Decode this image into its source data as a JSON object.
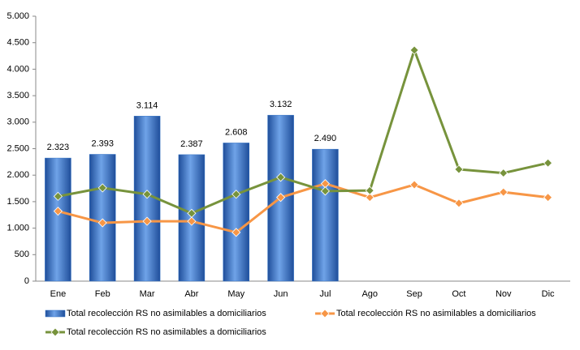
{
  "chart_data": {
    "type": "combo",
    "categories": [
      "Ene",
      "Feb",
      "Mar",
      "Abr",
      "May",
      "Jun",
      "Jul",
      "Ago",
      "Sep",
      "Oct",
      "Nov",
      "Dic"
    ],
    "ylim": [
      0,
      5000
    ],
    "yticks": [
      0,
      500,
      {
        "value": 1000,
        "label": "1.000"
      },
      {
        "value": 1500,
        "label": "1.500"
      },
      {
        "value": 2000,
        "label": "2.000"
      },
      {
        "value": 2500,
        "label": "2.500"
      },
      {
        "value": 3000,
        "label": "3.000"
      },
      {
        "value": 3500,
        "label": "3.500"
      },
      {
        "value": 4000,
        "label": "4.000"
      },
      {
        "value": 4500,
        "label": "4.500"
      },
      {
        "value": 5000,
        "label": "5.000"
      }
    ],
    "grid": false,
    "series": [
      {
        "name": "Total recolección RS no asimilables a domiciliarios",
        "type": "bar",
        "color": "#2e6fc4",
        "values": [
          2323,
          2393,
          3114,
          2387,
          2608,
          3132,
          2490,
          null,
          null,
          null,
          null,
          null
        ],
        "value_labels": [
          "2.323",
          "2.393",
          "3.114",
          "2.387",
          "2.608",
          "3.132",
          "2.490",
          null,
          null,
          null,
          null,
          null
        ]
      },
      {
        "name": "Total recolección RS no asimilables a domiciliarios",
        "type": "line",
        "color": "#f79646",
        "values": [
          1320,
          1100,
          1130,
          1130,
          920,
          1580,
          1840,
          1580,
          1820,
          1470,
          1680,
          1580
        ]
      },
      {
        "name": "Total recolección RS no asimilables a domiciliarios",
        "type": "line",
        "color": "#77933c",
        "values": [
          1600,
          1760,
          1640,
          1280,
          1640,
          1960,
          1700,
          1710,
          4360,
          2110,
          2040,
          2230
        ]
      }
    ]
  }
}
